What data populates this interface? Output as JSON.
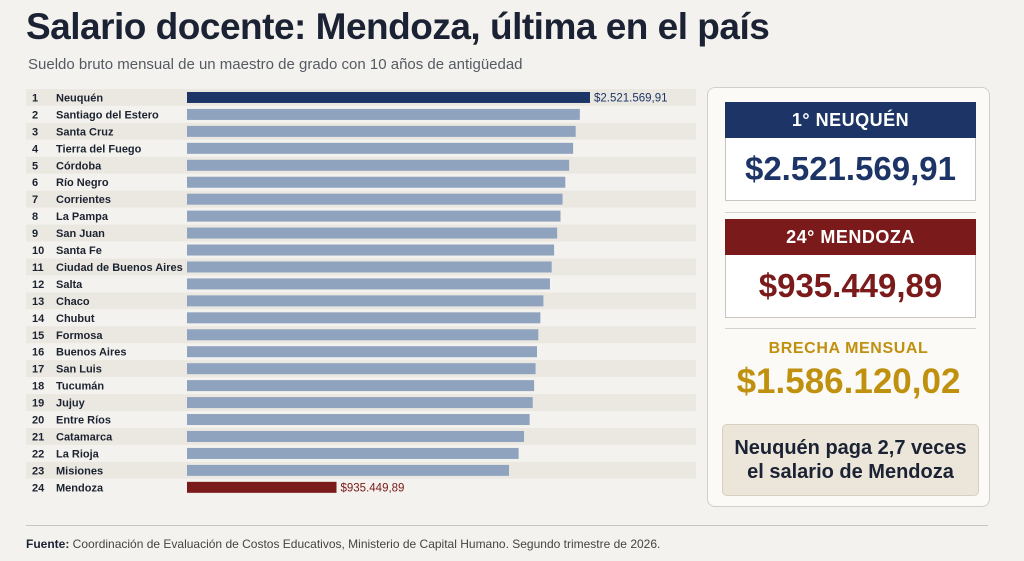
{
  "title": "Salario docente: Mendoza, última en el país",
  "subtitle": "Sueldo bruto mensual de un maestro de grado con 10 años de antigüedad",
  "chart_data": {
    "type": "bar",
    "orientation": "horizontal",
    "categories": [
      "Neuquén",
      "Santiago del Estero",
      "Santa Cruz",
      "Tierra del Fuego",
      "Córdoba",
      "Río Negro",
      "Corrientes",
      "La Pampa",
      "San Juan",
      "Santa Fe",
      "Ciudad de Buenos Aires",
      "Salta",
      "Chaco",
      "Chubut",
      "Formosa",
      "Buenos Aires",
      "San Luis",
      "Tucumán",
      "Jujuy",
      "Entre Ríos",
      "Catamarca",
      "La Rioja",
      "Misiones",
      "Mendoza"
    ],
    "ranks": [
      "1",
      "2",
      "3",
      "4",
      "5",
      "6",
      "7",
      "8",
      "9",
      "10",
      "11",
      "12",
      "13",
      "14",
      "15",
      "16",
      "17",
      "18",
      "19",
      "20",
      "21",
      "22",
      "23",
      "24"
    ],
    "values": [
      2521569.91,
      2458000,
      2432000,
      2416000,
      2391000,
      2367000,
      2350000,
      2337000,
      2316000,
      2297000,
      2282000,
      2271000,
      2230000,
      2211000,
      2198000,
      2190000,
      2181000,
      2172000,
      2163000,
      2144000,
      2109000,
      2075000,
      2015000,
      935449.89
    ],
    "data_labels": {
      "0": "$2.521.569,91",
      "23": "$935.449,89"
    },
    "xlim": [
      0,
      2521569.91
    ],
    "colors": {
      "default": "#8fa3bf",
      "highlight_top": "#1c3566",
      "highlight_bottom": "#7a1a1a"
    }
  },
  "cards": {
    "top_header": "1° NEUQUÉN",
    "top_value": "$2.521.569,91",
    "bottom_header": "24° MENDOZA",
    "bottom_value": "$935.449,89",
    "gap_label": "BRECHA MENSUAL",
    "gap_value": "$1.586.120,02",
    "note_line1": "Neuquén paga 2,7 veces",
    "note_line2": "el salario de Mendoza"
  },
  "source": {
    "label": "Fuente:",
    "text": " Coordinación de Evaluación de Costos Educativos, Ministerio de Capital Humano. Segundo trimestre de 2026."
  }
}
